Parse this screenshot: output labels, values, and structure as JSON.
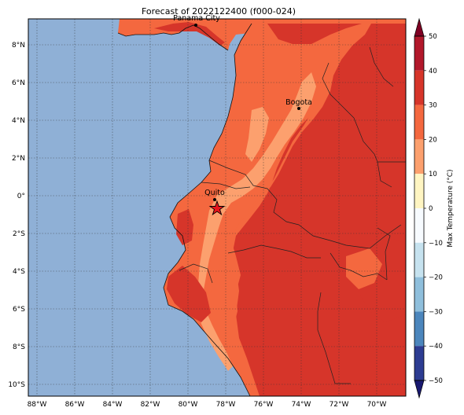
{
  "title": "Forecast of 2022122400 (f000-024)",
  "colorbar": {
    "label": "Max Temperature (°C)",
    "ticks": [
      "50",
      "40",
      "30",
      "20",
      "10",
      "0",
      "−10",
      "−20",
      "−30",
      "−40",
      "−50"
    ],
    "levels": [
      {
        "lo": 40,
        "hi": 50,
        "color": "#b2182b"
      },
      {
        "lo": 30,
        "hi": 40,
        "color": "#d6352a"
      },
      {
        "lo": 20,
        "hi": 30,
        "color": "#f4683f"
      },
      {
        "lo": 10,
        "hi": 20,
        "color": "#fca06e"
      },
      {
        "lo": 0,
        "hi": 10,
        "color": "#fff5c2"
      },
      {
        "lo": -10,
        "hi": 0,
        "color": "#f7fbff"
      },
      {
        "lo": -20,
        "hi": -10,
        "color": "#c6e2ef"
      },
      {
        "lo": -30,
        "hi": -20,
        "color": "#8fbfdc"
      },
      {
        "lo": -40,
        "hi": -30,
        "color": "#4c86bd"
      },
      {
        "lo": -50,
        "hi": -40,
        "color": "#2d3c92"
      }
    ],
    "over_color": "#7f0023",
    "under_color": "#191970"
  },
  "map": {
    "ocean_color": "#8fb0d6",
    "lat_labels": [
      "8°N",
      "6°N",
      "4°N",
      "2°N",
      "0°",
      "2°S",
      "4°S",
      "6°S",
      "8°S",
      "10°S"
    ],
    "lon_labels": [
      "88°W",
      "86°W",
      "84°W",
      "82°W",
      "80°W",
      "78°W",
      "76°W",
      "74°W",
      "72°W",
      "70°W"
    ],
    "cities": [
      {
        "name": "Panama City"
      },
      {
        "name": "Bogota"
      },
      {
        "name": "Quito"
      }
    ],
    "marker": "star-marker"
  }
}
